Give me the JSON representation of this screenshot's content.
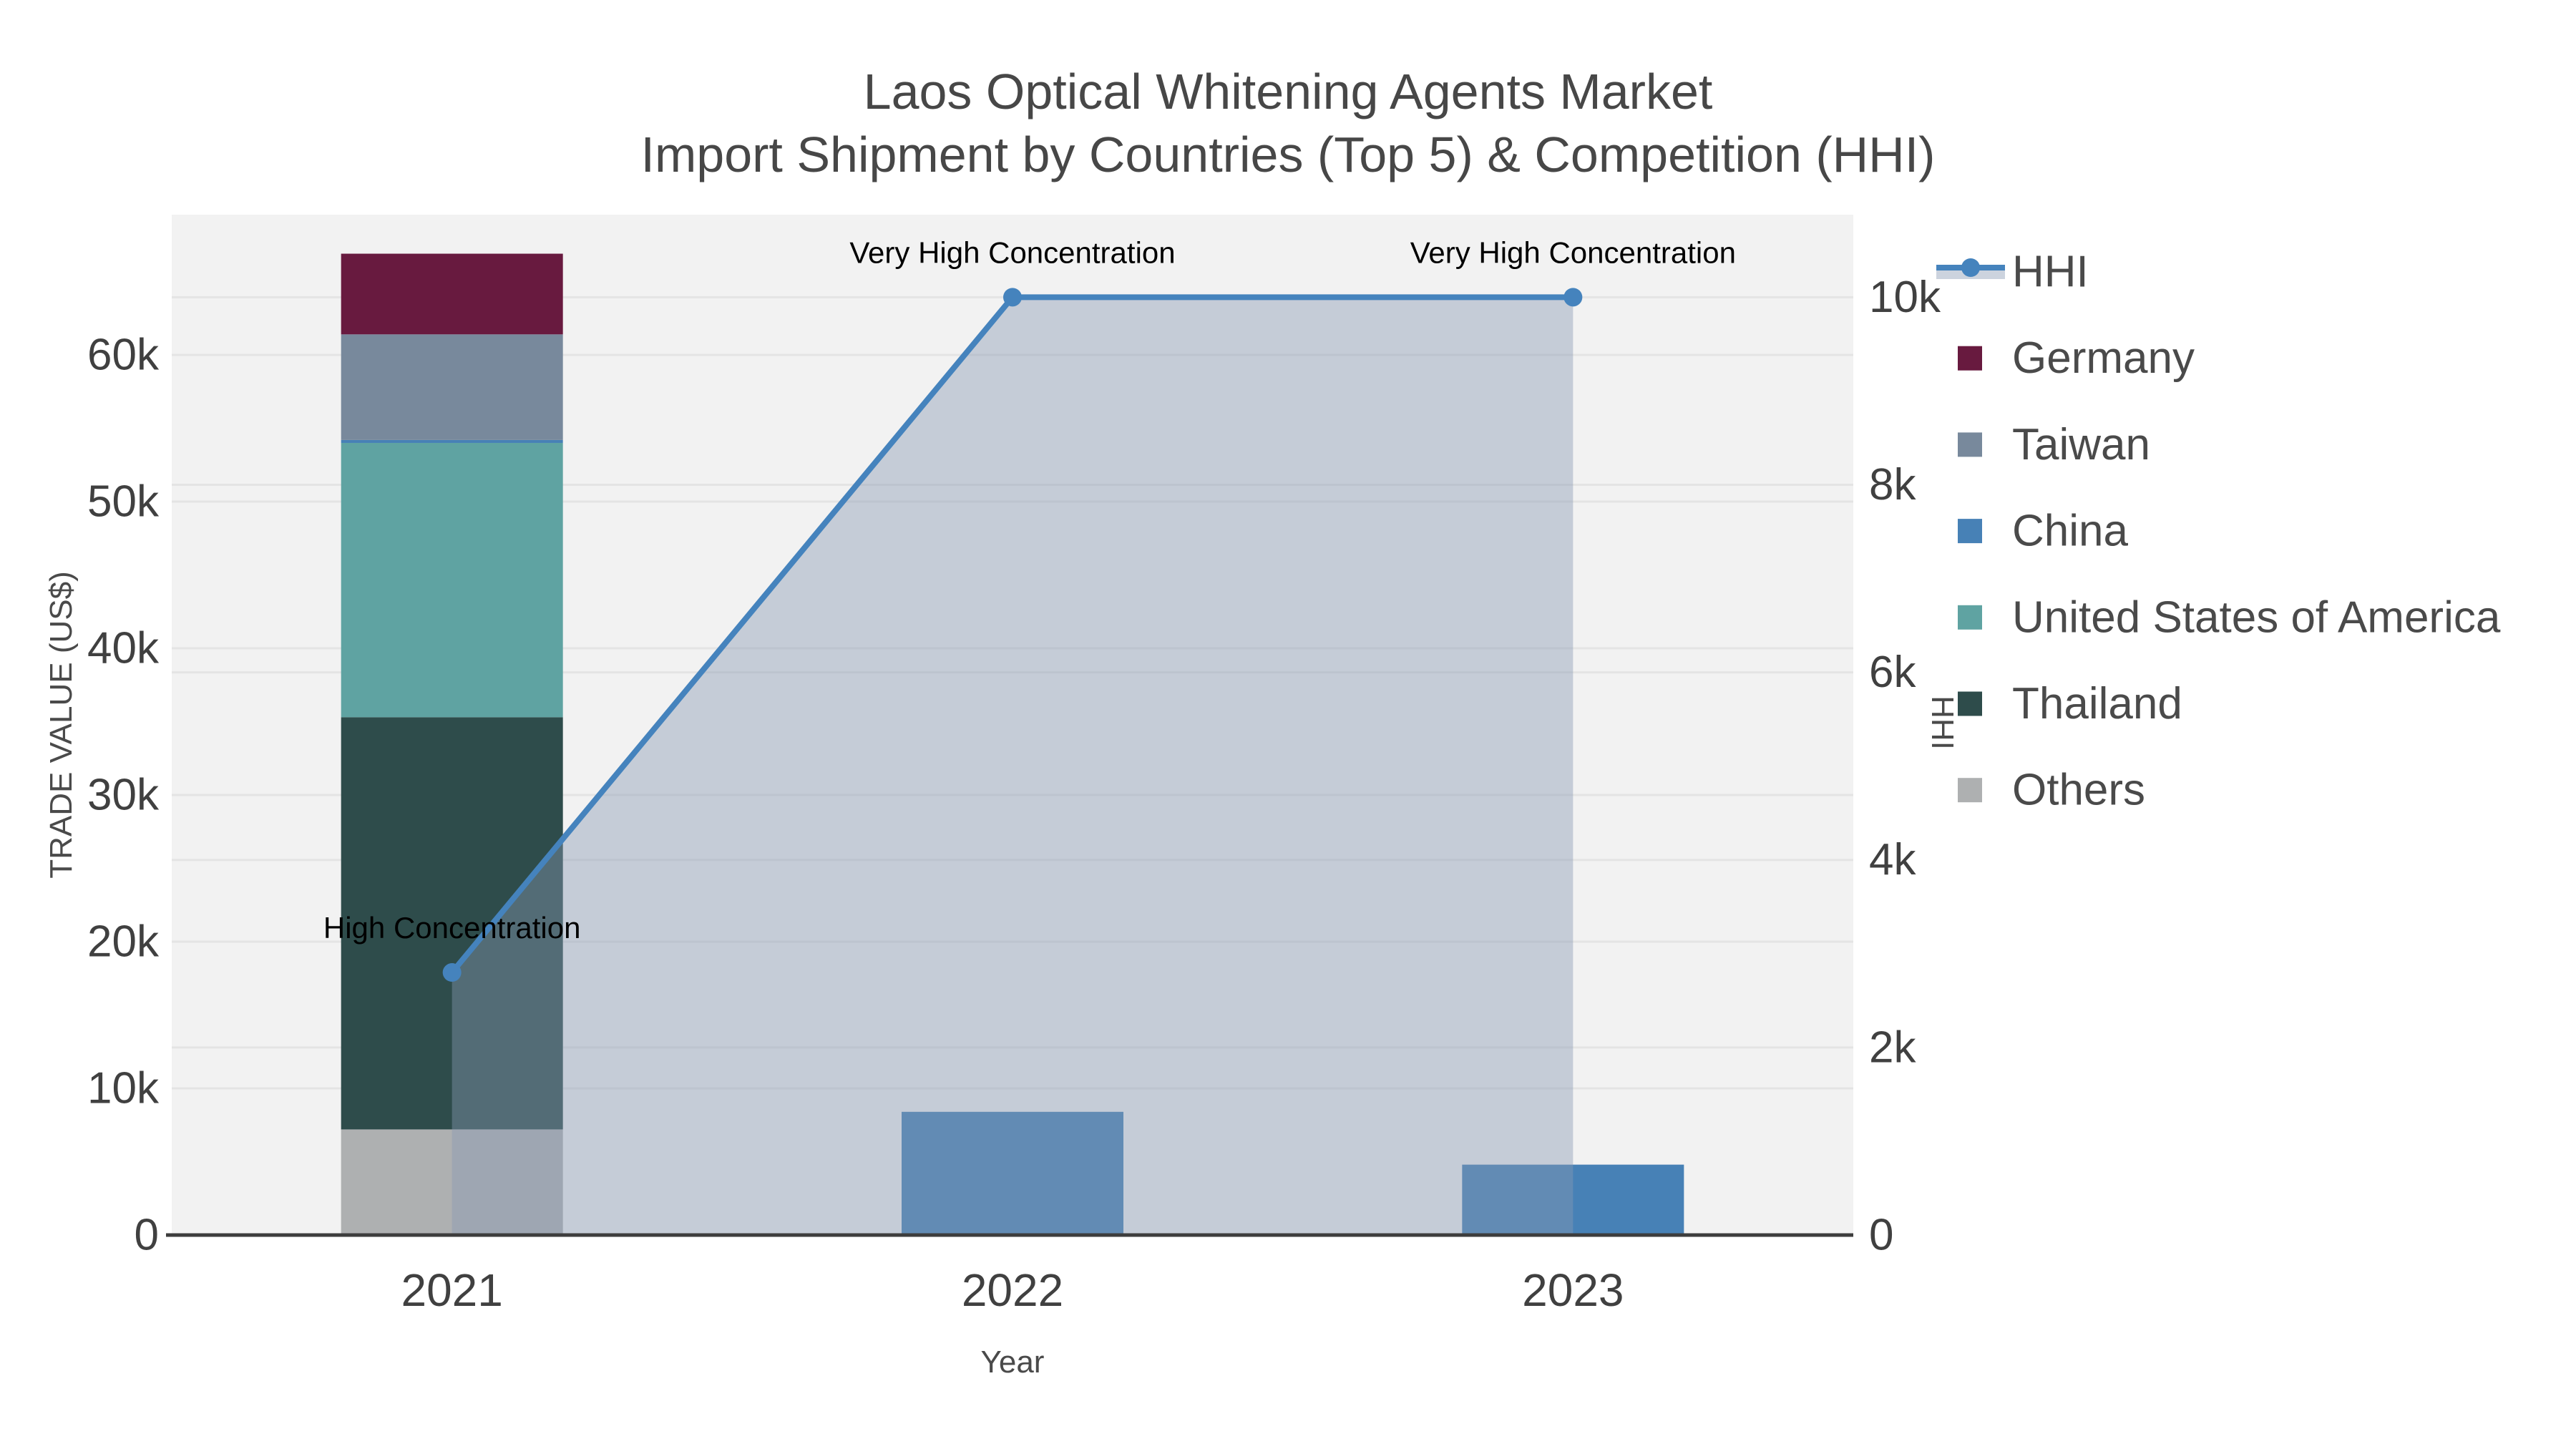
{
  "chart": {
    "title": "Laos Optical Whitening Agents Market",
    "subtitle": "Import Shipment by Countries (Top 5) & Competition (HHI)"
  },
  "colors": {
    "page_background": "#ffffff",
    "plot_background": "#f2f2f2",
    "gridline": "#e4e4e4",
    "axis_line": "#3d3d3d",
    "title_text": "#474747",
    "tick_text": "#404040",
    "annotation_text": "#000000",
    "hhi_line": "#4583bd",
    "hhi_area_fill": "#8998b3",
    "hhi_area_opacity": 0.42,
    "hhi_legend_band": "#ccd3de"
  },
  "chart_data": {
    "type": "combo: stacked-bar + line-area (dual axis)",
    "categories": [
      "2021",
      "2022",
      "2023"
    ],
    "xlabel": "Year",
    "bar_stack_bottom_to_top": [
      "Others",
      "Thailand",
      "United States of America",
      "China",
      "Taiwan",
      "Germany"
    ],
    "series": [
      {
        "name": "Others",
        "color": "#aeb0b1",
        "values": [
          7200,
          0,
          0
        ]
      },
      {
        "name": "Thailand",
        "color": "#2e4c4b",
        "values": [
          28100,
          0,
          0
        ]
      },
      {
        "name": "United States of America",
        "color": "#5fa3a2",
        "values": [
          18700,
          0,
          0
        ]
      },
      {
        "name": "China",
        "color": "#4781b6",
        "values": [
          200,
          8400,
          4800
        ]
      },
      {
        "name": "Taiwan",
        "color": "#78899c",
        "values": [
          7200,
          0,
          0
        ]
      },
      {
        "name": "Germany",
        "color": "#681a3f",
        "values": [
          5500,
          0,
          0
        ]
      }
    ],
    "bar_total_2021": 66900,
    "hhi": {
      "name": "HHI",
      "values": [
        2800,
        10000,
        10000
      ]
    },
    "y_left": {
      "label": "TRADE VALUE (US$)",
      "ticks": [
        0,
        10000,
        20000,
        30000,
        40000,
        50000,
        60000
      ],
      "tick_labels": [
        "0",
        "10k",
        "20k",
        "30k",
        "40k",
        "50k",
        "60k"
      ],
      "range": [
        0,
        69560
      ]
    },
    "y_right": {
      "label": "HHI",
      "ticks": [
        0,
        2000,
        4000,
        6000,
        8000,
        10000
      ],
      "tick_labels": [
        "0",
        "2k",
        "4k",
        "6k",
        "8k",
        "10k"
      ],
      "range": [
        0,
        10880
      ]
    },
    "annotations": [
      {
        "category_index": 0,
        "value": 2800,
        "text": "High Concentration"
      },
      {
        "category_index": 1,
        "value": 10000,
        "text": "Very High Concentration"
      },
      {
        "category_index": 2,
        "value": 10000,
        "text": "Very High Concentration"
      }
    ],
    "legend": [
      {
        "label": "HHI",
        "type": "line"
      },
      {
        "label": "Germany",
        "type": "swatch",
        "color": "#681a3f"
      },
      {
        "label": "Taiwan",
        "type": "swatch",
        "color": "#78899c"
      },
      {
        "label": "China",
        "type": "swatch",
        "color": "#4781b6"
      },
      {
        "label": "United States of America",
        "type": "swatch",
        "color": "#5fa3a2"
      },
      {
        "label": "Thailand",
        "type": "swatch",
        "color": "#2e4c4b"
      },
      {
        "label": "Others",
        "type": "swatch",
        "color": "#aeb0b1"
      }
    ],
    "grid": true,
    "legend_position": "right"
  }
}
